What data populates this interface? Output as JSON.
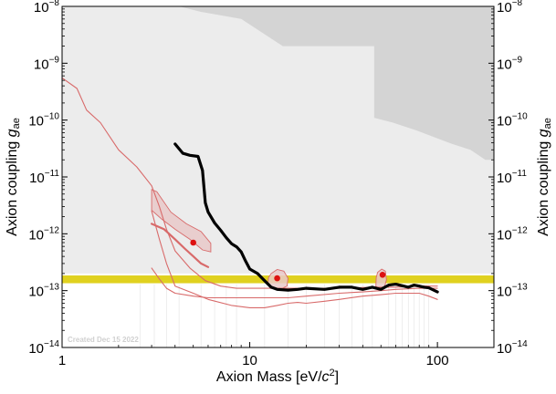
{
  "chart_data": {
    "type": "line",
    "xlabel": "Axion Mass [eV/c²]",
    "xlabel_parts": {
      "main": "Axion Mass [eV/",
      "var": "c",
      "sup": "2",
      "end": "]"
    },
    "ylabel": "Axion coupling gae",
    "ylabel_parts": {
      "main": "Axion coupling ",
      "var": "g",
      "sub": "ae"
    },
    "watermark": "Created Dec 15 2022",
    "x_scale": "log",
    "y_scale": "log",
    "xlim": [
      1,
      200
    ],
    "ylim": [
      1e-14,
      1e-08
    ],
    "x_ticks": [
      {
        "value": 1,
        "label": "1"
      },
      {
        "value": 10,
        "label": "10"
      },
      {
        "value": 100,
        "label": "100"
      }
    ],
    "y_ticks": [
      {
        "value": 1e-14,
        "base": "10",
        "exp": "−14"
      },
      {
        "value": 1e-13,
        "base": "10",
        "exp": "−13"
      },
      {
        "value": 1e-12,
        "base": "10",
        "exp": "−12"
      },
      {
        "value": 1e-11,
        "base": "10",
        "exp": "−11"
      },
      {
        "value": 1e-10,
        "base": "10",
        "exp": "−10"
      },
      {
        "value": 1e-09,
        "base": "10",
        "exp": "−9"
      },
      {
        "value": 1e-08,
        "base": "10",
        "exp": "−8"
      }
    ],
    "colors": {
      "excluded_region": "#ececec",
      "excluded_dark": "#d4d4d4",
      "band": "#e0d11f",
      "main_curve": "#000000",
      "red_curves": "#d86a6a",
      "contours": "#e9c9c9",
      "points": "#dd1111"
    },
    "regions": [
      {
        "name": "light-excluded",
        "points": [
          [
            1,
            1e-08
          ],
          [
            200,
            1e-08
          ],
          [
            200,
            2e-13
          ],
          [
            1,
            2e-13
          ]
        ]
      },
      {
        "name": "top-shaded",
        "points": [
          [
            4.2,
            1e-08
          ],
          [
            200,
            1e-08
          ],
          [
            200,
            2e-09
          ],
          [
            15,
            2e-09
          ],
          [
            9,
            6e-09
          ],
          [
            5.5,
            8e-09
          ]
        ]
      },
      {
        "name": "right-shaded",
        "points": [
          [
            46,
            1e-08
          ],
          [
            200,
            1e-08
          ],
          [
            200,
            2e-11
          ],
          [
            180,
            2e-11
          ],
          [
            150,
            3e-11
          ],
          [
            120,
            3.8e-11
          ],
          [
            96,
            5e-11
          ],
          [
            78,
            6.5e-11
          ],
          [
            58,
            9e-11
          ],
          [
            46,
            1.1e-10
          ]
        ]
      }
    ],
    "band": {
      "ymin": 1.35e-13,
      "ymax": 1.85e-13
    },
    "series": [
      {
        "style": "thick",
        "x": [
          4,
          4.4,
          4.8,
          5.3,
          5.6,
          5.8,
          6,
          6.5,
          7,
          7.5,
          8,
          8.5,
          9,
          9.5,
          10,
          11,
          12,
          13,
          14,
          16,
          18,
          20,
          25,
          30,
          35,
          40,
          45,
          50,
          55,
          60,
          65,
          70,
          75,
          80,
          85,
          90,
          100
        ],
        "y": [
          3.8e-11,
          2.6e-11,
          2.4e-11,
          2.3e-11,
          1.3e-11,
          3.5e-12,
          2.4e-12,
          1.55e-12,
          1.15e-12,
          8.5e-13,
          6.7e-13,
          5.9e-13,
          4.8e-13,
          3.3e-13,
          2.4e-13,
          2e-13,
          1.5e-13,
          1.15e-13,
          1.05e-13,
          1.02e-13,
          1.05e-13,
          1.1e-13,
          1.05e-13,
          1.15e-13,
          1.15e-13,
          1.05e-13,
          1.15e-13,
          1.05e-13,
          1.25e-13,
          1.3e-13,
          1.22e-13,
          1.15e-13,
          1.25e-13,
          1.2e-13,
          1.15e-13,
          1.12e-13,
          9.5e-14
        ]
      },
      {
        "style": "thin",
        "x": [
          1,
          1.2,
          1.35,
          1.6,
          2,
          2.5,
          3,
          3.3,
          3.6,
          4,
          4.8,
          5.8,
          7,
          8.5,
          10,
          12,
          16,
          22,
          30,
          45,
          60,
          80,
          100
        ],
        "y": [
          5.5e-10,
          3.6e-10,
          1.5e-10,
          9e-11,
          3e-11,
          1.5e-11,
          7e-12,
          3e-12,
          1.2e-12,
          5e-13,
          2.5e-13,
          1.5e-13,
          1.2e-13,
          1.1e-13,
          1.1e-13,
          1.1e-13,
          1.1e-13,
          1.1e-13,
          1.1e-13,
          1.15e-13,
          1.15e-13,
          1.2e-13,
          1.2e-13
        ]
      },
      {
        "style": "thin",
        "x": [
          3,
          3.3,
          3.6,
          4,
          5,
          6,
          8,
          10,
          13,
          16,
          20,
          30,
          40,
          50,
          60,
          80,
          100
        ],
        "y": [
          2.5e-13,
          1.6e-13,
          1.1e-13,
          9e-14,
          8e-14,
          7.5e-14,
          7.5e-14,
          7.5e-14,
          7.5e-14,
          7.5e-14,
          8e-14,
          9e-14,
          9.5e-14,
          1e-13,
          1.05e-13,
          1.1e-13,
          1.1e-13
        ]
      },
      {
        "style": "thin",
        "x": [
          3,
          3.3,
          3.6,
          4,
          5,
          6,
          8,
          10,
          12,
          14,
          16,
          18,
          20,
          25,
          30,
          40,
          50,
          60,
          70,
          80,
          90,
          100
        ],
        "y": [
          2.5e-12,
          8e-13,
          3e-13,
          1.2e-13,
          9e-14,
          7e-14,
          5.5e-14,
          5e-14,
          5e-14,
          5.5e-14,
          6e-14,
          6.2e-14,
          6e-14,
          6.5e-14,
          7e-14,
          8e-14,
          8.5e-14,
          9e-14,
          9e-14,
          9e-14,
          8e-14,
          7e-14
        ]
      },
      {
        "style": "medium",
        "x": [
          3,
          3.5,
          4,
          4.5,
          5,
          5.5,
          6
        ],
        "y": [
          1.5e-12,
          1.2e-12,
          8e-13,
          5.5e-13,
          4e-13,
          3e-13,
          2.6e-13
        ]
      }
    ],
    "contours": [
      {
        "points": [
          [
            3,
            2.6e-12
          ],
          [
            3.4,
            1.8e-12
          ],
          [
            4,
            1.2e-12
          ],
          [
            4.8,
            8e-13
          ],
          [
            5.6,
            5.2e-13
          ],
          [
            6.2,
            4.8e-13
          ],
          [
            6.2,
            6.8e-13
          ],
          [
            5.5,
            1.1e-12
          ],
          [
            4.6,
            1.5e-12
          ],
          [
            3.8,
            2.4e-12
          ],
          [
            3.2,
            5.5e-12
          ],
          [
            3,
            6e-12
          ]
        ]
      },
      {
        "points": [
          [
            12.5,
            1.35e-13
          ],
          [
            13.2,
            1.1e-13
          ],
          [
            14.5,
            1.05e-13
          ],
          [
            15.8,
            1.2e-13
          ],
          [
            16,
            1.65e-13
          ],
          [
            15.2,
            2.2e-13
          ],
          [
            14,
            2.35e-13
          ],
          [
            13,
            2e-13
          ],
          [
            12.6,
            1.7e-13
          ]
        ]
      },
      {
        "points": [
          [
            47,
            1.2e-13
          ],
          [
            48.5,
            1.05e-13
          ],
          [
            52,
            1.1e-13
          ],
          [
            53.5,
            1.55e-13
          ],
          [
            52.8,
            2.2e-13
          ],
          [
            50.5,
            2.4e-13
          ],
          [
            48,
            2.1e-13
          ],
          [
            47.2,
            1.7e-13
          ]
        ]
      }
    ],
    "points": [
      [
        5,
        7e-13
      ],
      [
        14,
        1.65e-13
      ],
      [
        51,
        1.9e-13
      ]
    ]
  }
}
